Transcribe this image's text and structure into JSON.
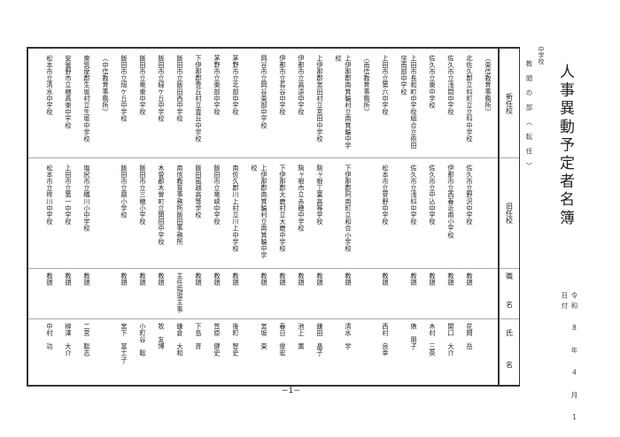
{
  "title": "人事異動予定者名簿",
  "date": "令和 8 年 4 月 1 日付",
  "category": "中学校",
  "section_title": "教頭の部〈転任〉",
  "headers": {
    "new_school": "新任校",
    "old_school": "旧任校",
    "job": "職　名",
    "name": "氏　名"
  },
  "rows": [
    {
      "section": "〈東信教育事務所〉"
    },
    {
      "new": "北佐久郡立科町立立科中学校",
      "old": "佐久市立野沢中学校",
      "job": "教頭",
      "name": "花岡　岳"
    },
    {
      "new": "佐久市立浅間中学校",
      "old": "伊那市立西春近南小学校",
      "job": "教頭",
      "name": "関口　大介"
    },
    {
      "new": "佐久市立東中学校",
      "old": "佐久市立中込中学校",
      "job": "教頭",
      "name": "木村　三英"
    },
    {
      "new": "上田市長和町中学校組合立依田窪南部中学校",
      "old": "佐久市立浅科中学校",
      "job": "教頭",
      "name": "俵　朋子",
      "wrap": true
    },
    {
      "new": "上田市立第六中学校",
      "old": "松本市立菅野中学校",
      "job": "教頭",
      "name": "西村　良幸"
    },
    {
      "section": "〈南信教育事務所〉"
    },
    {
      "new": "上伊那郡南箕輪村立南箕輪中学校",
      "old": "下伊那郡阿南町立和合小学校",
      "job": "教頭",
      "name": "清水　学",
      "wrap": true
    },
    {
      "new": "上伊那郡宮田村立宮田中学校",
      "old": "駒ヶ根工業高等学校",
      "job": "教頭",
      "name": "鎌田　晶子"
    },
    {
      "new": "伊那市立高遠中学校",
      "old": "駒ヶ根市立赤穂中学校",
      "job": "教頭",
      "name": "池上　薫"
    },
    {
      "new": "伊那市立長谷中学校",
      "old": "下伊那郡大鹿村立大鹿中学校",
      "job": "教頭",
      "name": "春日　俊宏"
    },
    {
      "new": "岡谷市立岡谷東部中学校",
      "old": "上伊那郡南箕輪村立南箕輪中学校",
      "job": "教頭",
      "name": "宮坂　東",
      "wrap": true
    },
    {
      "new": "茅野市立北部中学校",
      "old": "南佐久郡川上村立川上中学校",
      "job": "教頭",
      "name": "後町　智史"
    },
    {
      "new": "茅野市立東部中学校",
      "old": "飯田市立竜峡中学校",
      "job": "教頭",
      "name": "笠原　健史"
    },
    {
      "new": "下伊那郡豊丘村立豊丘中学校",
      "old": "飯田風越高等学校",
      "job": "教頭",
      "name": "下島　斉"
    },
    {
      "new": "飯田市立飯田西中学校",
      "old": "南信教育事務所飯田事務所",
      "job": "主任指導主事",
      "name": "鎌倉　大和"
    },
    {
      "new": "飯田市立緑ケ丘中学校",
      "old": "木曽郡木曽町立開田中学校",
      "job": "教頭",
      "name": "牧　友博"
    },
    {
      "new": "飯田市立竜東中学校",
      "old": "飯田市立三穂小学校",
      "job": "教頭",
      "name": "小町谷　聡"
    },
    {
      "new": "飯田市立旭ケ丘中学校",
      "old": "飯田市立鼎小学校",
      "job": "教頭",
      "name": "宮下　富士子"
    },
    {
      "section": "〈中信教育事務所〉"
    },
    {
      "new": "東筑摩郡生坂村立生坂中学校",
      "old": "塩尻市立楢川小中学校",
      "job": "教頭",
      "name": "二宮　聡志"
    },
    {
      "new": "安曇野市立穂高東中学校",
      "old": "上田市立第一中学校",
      "job": "教頭",
      "name": "柳澤　大介"
    },
    {
      "new": "松本市立清水中学校",
      "old": "松本市立梓川中学校",
      "job": "教頭",
      "name": "中村　功"
    }
  ],
  "footer": "−1−"
}
